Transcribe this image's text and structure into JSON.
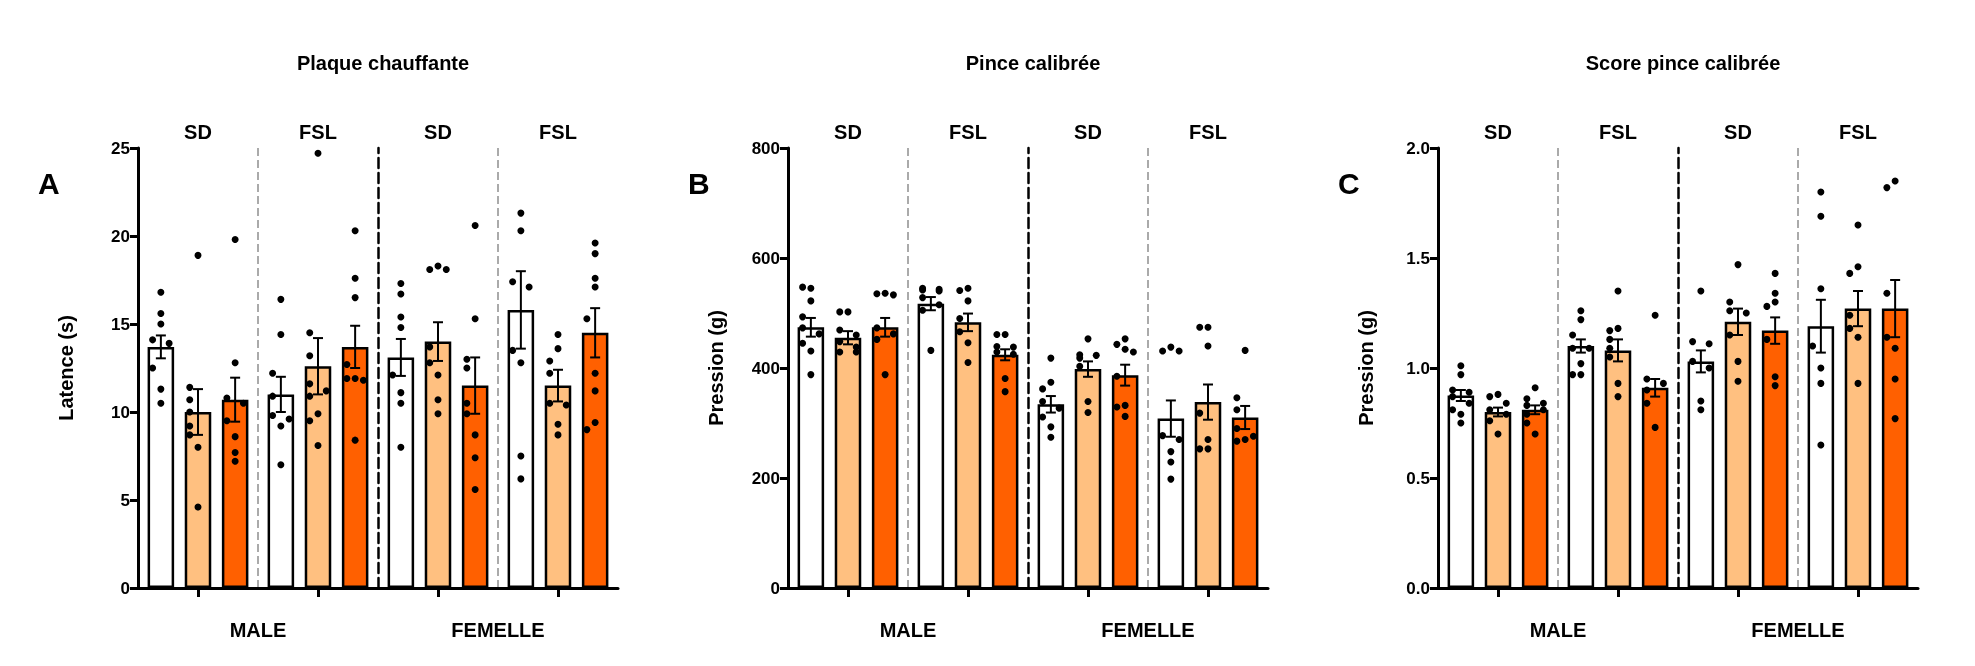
{
  "chart_data": [
    {
      "type": "bar",
      "title": "Plaque chauffante",
      "ylabel": "Latence (s)",
      "xlabel": "MALE",
      "categories": [
        "SD",
        "FSL"
      ],
      "annotations": [
        "A"
      ],
      "ylim": [
        0,
        25
      ],
      "yticks": [
        0,
        5,
        10,
        15,
        20,
        25
      ],
      "grid": "x",
      "marker": "circle",
      "series": [
        {
          "color": "#ffffff",
          "values": [
            13.7,
            11.0
          ],
          "errors": [
            0.65,
            1.0
          ]
        },
        {
          "color": "#ffc080",
          "values": [
            10.0,
            12.6
          ],
          "errors": [
            1.3,
            1.6
          ]
        },
        {
          "color": "#ff6000",
          "values": [
            10.7,
            13.7
          ],
          "errors": [
            1.25,
            1.2
          ]
        },
        {
          "type": "scatter",
          "color": "#000000",
          "x": [
            "SD",
            "SD",
            "SD",
            "SD",
            "SD",
            "SD",
            "SD",
            "SD",
            "FSL",
            "FSL",
            "FSL",
            "FSL",
            "FSL",
            "FSL",
            "FSL",
            "FSL"
          ],
          "values": [
            16.8,
            15.6,
            15.0,
            14.1,
            13.9,
            12.5,
            11.3,
            10.5,
            16.4,
            14.4,
            12.2,
            10.9,
            9.8,
            9.6,
            9.2,
            7.0
          ]
        },
        {
          "type": "scatter",
          "color": "#000000",
          "x": [
            "SD",
            "SD",
            "SD",
            "SD",
            "SD",
            "SD",
            "SD",
            "SD",
            "FSL",
            "FSL",
            "FSL",
            "FSL",
            "FSL",
            "FSL",
            "FSL",
            "FSL",
            "FSL"
          ],
          "values": [
            18.9,
            11.4,
            10.7,
            10.0,
            9.2,
            8.7,
            8.0,
            4.6,
            24.7,
            14.5,
            13.2,
            11.6,
            11.2,
            10.9,
            9.9,
            9.5,
            8.1
          ]
        },
        {
          "type": "scatter",
          "color": "#000000",
          "x": [
            "SD",
            "SD",
            "SD",
            "SD",
            "SD",
            "SD",
            "SD",
            "SD",
            "FSL",
            "FSL",
            "FSL",
            "FSL",
            "FSL",
            "FSL",
            "FSL",
            "FSL"
          ],
          "values": [
            19.8,
            12.8,
            10.8,
            10.5,
            9.5,
            8.6,
            7.7,
            7.2,
            20.3,
            17.6,
            16.5,
            12.7,
            11.9,
            11.9,
            11.8,
            8.4
          ]
        }
      ]
    },
    {
      "type": "bar",
      "xlabel": "FEMELLE",
      "categories": [
        "SD",
        "FSL"
      ],
      "ylim": [
        0,
        25
      ],
      "tick_labels": "x",
      "grid": "x",
      "marker": "circle",
      "series": [
        {
          "color": "#ffffff",
          "values": [
            13.1,
            15.8
          ],
          "errors": [
            1.05,
            2.2
          ]
        },
        {
          "color": "#ffc080",
          "values": [
            14.0,
            11.5
          ],
          "errors": [
            1.1,
            0.9
          ]
        },
        {
          "color": "#ff6000",
          "values": [
            11.5,
            14.5
          ],
          "errors": [
            1.6,
            1.4
          ]
        },
        {
          "type": "scatter",
          "color": "#000000",
          "x": [
            "SD",
            "SD",
            "SD",
            "SD",
            "SD",
            "SD",
            "SD",
            "SD",
            "FSL",
            "FSL",
            "FSL",
            "FSL",
            "FSL",
            "FSL",
            "FSL",
            "FSL"
          ],
          "values": [
            17.3,
            16.7,
            15.4,
            14.8,
            12.1,
            11.1,
            10.5,
            8.0,
            21.3,
            20.3,
            17.4,
            17.1,
            13.5,
            12.8,
            7.5,
            6.2
          ]
        },
        {
          "type": "scatter",
          "color": "#000000",
          "x": [
            "SD",
            "SD",
            "SD",
            "SD",
            "SD",
            "SD",
            "SD",
            "SD",
            "FSL",
            "FSL",
            "FSL",
            "FSL",
            "FSL",
            "FSL",
            "FSL",
            "FSL"
          ],
          "values": [
            18.3,
            18.1,
            18.1,
            13.7,
            12.8,
            12.1,
            10.7,
            9.9,
            14.4,
            13.6,
            12.9,
            12.2,
            10.5,
            10.4,
            9.3,
            8.7
          ]
        },
        {
          "type": "scatter",
          "color": "#000000",
          "x": [
            "SD",
            "SD",
            "SD",
            "SD",
            "SD",
            "SD",
            "SD",
            "SD",
            "SD",
            "FSL",
            "FSL",
            "FSL",
            "FSL",
            "FSL",
            "FSL",
            "FSL",
            "FSL",
            "FSL"
          ],
          "values": [
            20.6,
            15.3,
            13.0,
            12.5,
            10.5,
            9.9,
            8.7,
            7.4,
            5.6,
            19.6,
            19.0,
            17.6,
            17.1,
            15.3,
            12.2,
            11.2,
            9.4,
            9.0
          ]
        }
      ]
    },
    {
      "type": "bar",
      "title": "Pince calibrée",
      "ylabel": "Pression (g)",
      "xlabel": "MALE",
      "categories": [
        "SD",
        "FSL"
      ],
      "annotations": [
        "B"
      ],
      "ylim": [
        0,
        800
      ],
      "yticks": [
        0,
        200,
        400,
        600,
        800
      ],
      "grid": "x",
      "marker": "circle",
      "series": [
        {
          "color": "#ffffff",
          "values": [
            474,
            517
          ],
          "errors": [
            17,
            12
          ]
        },
        {
          "color": "#ffc080",
          "values": [
            455,
            483
          ],
          "errors": [
            12,
            16
          ]
        },
        {
          "color": "#ff6000",
          "values": [
            474,
            424
          ],
          "errors": [
            17,
            10
          ]
        },
        {
          "type": "scatter",
          "color": "#000000",
          "x": [
            "SD",
            "SD",
            "SD",
            "SD",
            "SD",
            "SD",
            "SD",
            "SD",
            "SD",
            "FSL",
            "FSL",
            "FSL",
            "FSL",
            "FSL",
            "FSL",
            "FSL",
            "FSL"
          ],
          "values": [
            545,
            547,
            522,
            493,
            473,
            462,
            445,
            431,
            388,
            545,
            543,
            542,
            540,
            528,
            515,
            505,
            432
          ]
        },
        {
          "type": "scatter",
          "color": "#000000",
          "x": [
            "SD",
            "SD",
            "SD",
            "SD",
            "SD",
            "SD",
            "SD",
            "SD",
            "FSL",
            "FSL",
            "FSL",
            "FSL",
            "FSL",
            "FSL",
            "FSL"
          ],
          "values": [
            502,
            502,
            469,
            460,
            448,
            438,
            429,
            429,
            545,
            541,
            522,
            490,
            466,
            446,
            410
          ]
        },
        {
          "type": "scatter",
          "color": "#000000",
          "x": [
            "SD",
            "SD",
            "SD",
            "SD",
            "SD",
            "SD",
            "SD",
            "FSL",
            "FSL",
            "FSL",
            "FSL",
            "FSL",
            "FSL",
            "FSL",
            "FSL"
          ],
          "values": [
            536,
            535,
            533,
            473,
            462,
            452,
            388,
            461,
            461,
            439,
            438,
            429,
            425,
            381,
            357
          ]
        }
      ]
    },
    {
      "type": "bar",
      "xlabel": "FEMELLE",
      "categories": [
        "SD",
        "FSL"
      ],
      "ylim": [
        0,
        800
      ],
      "tick_labels": "x",
      "grid": "x",
      "marker": "circle",
      "series": [
        {
          "color": "#ffffff",
          "values": [
            334,
            308
          ],
          "errors": [
            15,
            33
          ]
        },
        {
          "color": "#ffc080",
          "values": [
            398,
            338
          ],
          "errors": [
            14,
            32
          ]
        },
        {
          "color": "#ff6000",
          "values": [
            387,
            310
          ],
          "errors": [
            19,
            21
          ]
        },
        {
          "type": "scatter",
          "color": "#000000",
          "x": [
            "SD",
            "SD",
            "SD",
            "SD",
            "SD",
            "SD",
            "SD",
            "SD",
            "FSL",
            "FSL",
            "FSL",
            "FSL",
            "FSL",
            "FSL",
            "FSL",
            "FSL"
          ],
          "values": [
            418,
            374,
            362,
            339,
            327,
            311,
            293,
            274,
            438,
            431,
            431,
            277,
            270,
            248,
            229,
            198
          ]
        },
        {
          "type": "scatter",
          "color": "#000000",
          "x": [
            "SD",
            "SD",
            "SD",
            "SD",
            "SD",
            "SD",
            "SD",
            "FSL",
            "FSL",
            "FSL",
            "FSL",
            "FSL",
            "FSL",
            "FSL"
          ],
          "values": [
            453,
            424,
            423,
            418,
            403,
            339,
            319,
            474,
            474,
            440,
            318,
            270,
            253,
            253
          ]
        },
        {
          "type": "scatter",
          "color": "#000000",
          "x": [
            "SD",
            "SD",
            "SD",
            "SD",
            "SD",
            "SD",
            "SD",
            "SD",
            "FSL",
            "FSL",
            "FSL",
            "FSL",
            "FSL",
            "FSL",
            "FSL"
          ],
          "values": [
            453,
            443,
            434,
            429,
            385,
            332,
            329,
            312,
            432,
            346,
            324,
            290,
            276,
            270,
            267
          ]
        }
      ]
    },
    {
      "type": "bar",
      "title": "Score pince calibrée",
      "ylabel": "Pression (g)",
      "xlabel": "MALE",
      "categories": [
        "SD",
        "FSL"
      ],
      "annotations": [
        "C"
      ],
      "ylim": [
        0,
        2
      ],
      "yticks": [
        {
          "value": 0,
          "label": "0.0"
        },
        0.5,
        {
          "value": 1,
          "label": "1.0"
        },
        1.5,
        {
          "value": 2,
          "label": "2.0"
        }
      ],
      "grid": "x",
      "marker": "circle",
      "series": [
        {
          "color": "#ffffff",
          "values": [
            0.875,
            1.1
          ],
          "errors": [
            0.025,
            0.03
          ]
        },
        {
          "color": "#ffc080",
          "values": [
            0.8,
            1.08
          ],
          "errors": [
            0.02,
            0.05
          ]
        },
        {
          "color": "#ff6000",
          "values": [
            0.81,
            0.91
          ],
          "errors": [
            0.02,
            0.04
          ]
        },
        {
          "type": "scatter",
          "color": "#000000",
          "x": [
            "SD",
            "SD",
            "SD",
            "SD",
            "SD",
            "SD",
            "SD",
            "SD",
            "SD",
            "FSL",
            "FSL",
            "FSL",
            "FSL",
            "FSL",
            "FSL",
            "FSL",
            "FSL"
          ],
          "values": [
            1.01,
            0.97,
            0.9,
            0.89,
            0.87,
            0.84,
            0.81,
            0.79,
            0.75,
            1.26,
            1.22,
            1.15,
            1.09,
            1.09,
            1.02,
            0.97,
            0.97
          ]
        },
        {
          "type": "scatter",
          "color": "#000000",
          "x": [
            "SD",
            "SD",
            "SD",
            "SD",
            "SD",
            "SD",
            "SD",
            "FSL",
            "FSL",
            "FSL",
            "FSL",
            "FSL",
            "FSL",
            "FSL",
            "FSL"
          ],
          "values": [
            0.88,
            0.87,
            0.84,
            0.81,
            0.79,
            0.76,
            0.7,
            1.35,
            1.18,
            1.17,
            1.13,
            1.09,
            1.05,
            0.93,
            0.87
          ]
        },
        {
          "type": "scatter",
          "color": "#000000",
          "x": [
            "SD",
            "SD",
            "SD",
            "SD",
            "SD",
            "SD",
            "SD",
            "SD",
            "FSL",
            "FSL",
            "FSL",
            "FSL",
            "FSL",
            "FSL"
          ],
          "values": [
            0.91,
            0.86,
            0.84,
            0.83,
            0.81,
            0.79,
            0.75,
            0.7,
            1.24,
            0.95,
            0.93,
            0.9,
            0.84,
            0.73
          ]
        }
      ]
    },
    {
      "type": "bar",
      "xlabel": "FEMELLE",
      "categories": [
        "SD",
        "FSL"
      ],
      "ylim": [
        0,
        2
      ],
      "tick_labels": "x",
      "grid": "x",
      "marker": "circle",
      "series": [
        {
          "color": "#ffffff",
          "values": [
            1.03,
            1.19
          ],
          "errors": [
            0.05,
            0.12
          ]
        },
        {
          "color": "#ffc080",
          "values": [
            1.21,
            1.27
          ],
          "errors": [
            0.06,
            0.08
          ]
        },
        {
          "color": "#ff6000",
          "values": [
            1.17,
            1.27
          ],
          "errors": [
            0.06,
            0.13
          ]
        },
        {
          "type": "scatter",
          "color": "#000000",
          "x": [
            "SD",
            "SD",
            "SD",
            "SD",
            "SD",
            "SD",
            "SD",
            "FSL",
            "FSL",
            "FSL",
            "FSL",
            "FSL",
            "FSL",
            "FSL"
          ],
          "values": [
            1.35,
            1.12,
            1.11,
            1.03,
            1.0,
            0.85,
            0.81,
            1.8,
            1.69,
            1.36,
            1.1,
            1.0,
            0.93,
            0.65
          ]
        },
        {
          "type": "scatter",
          "color": "#000000",
          "x": [
            "SD",
            "SD",
            "SD",
            "SD",
            "SD",
            "SD",
            "SD",
            "FSL",
            "FSL",
            "FSL",
            "FSL",
            "FSL",
            "FSL",
            "FSL"
          ],
          "values": [
            1.47,
            1.3,
            1.26,
            1.25,
            1.15,
            1.03,
            0.94,
            1.65,
            1.46,
            1.43,
            1.24,
            1.18,
            1.14,
            0.93
          ]
        },
        {
          "type": "scatter",
          "color": "#000000",
          "x": [
            "SD",
            "SD",
            "SD",
            "SD",
            "SD",
            "SD",
            "SD",
            "FSL",
            "FSL",
            "FSL",
            "FSL",
            "FSL",
            "FSL",
            "FSL"
          ],
          "values": [
            1.43,
            1.34,
            1.3,
            1.28,
            1.13,
            0.96,
            0.92,
            1.85,
            1.82,
            1.34,
            1.14,
            1.09,
            0.95,
            0.77
          ]
        }
      ]
    }
  ]
}
